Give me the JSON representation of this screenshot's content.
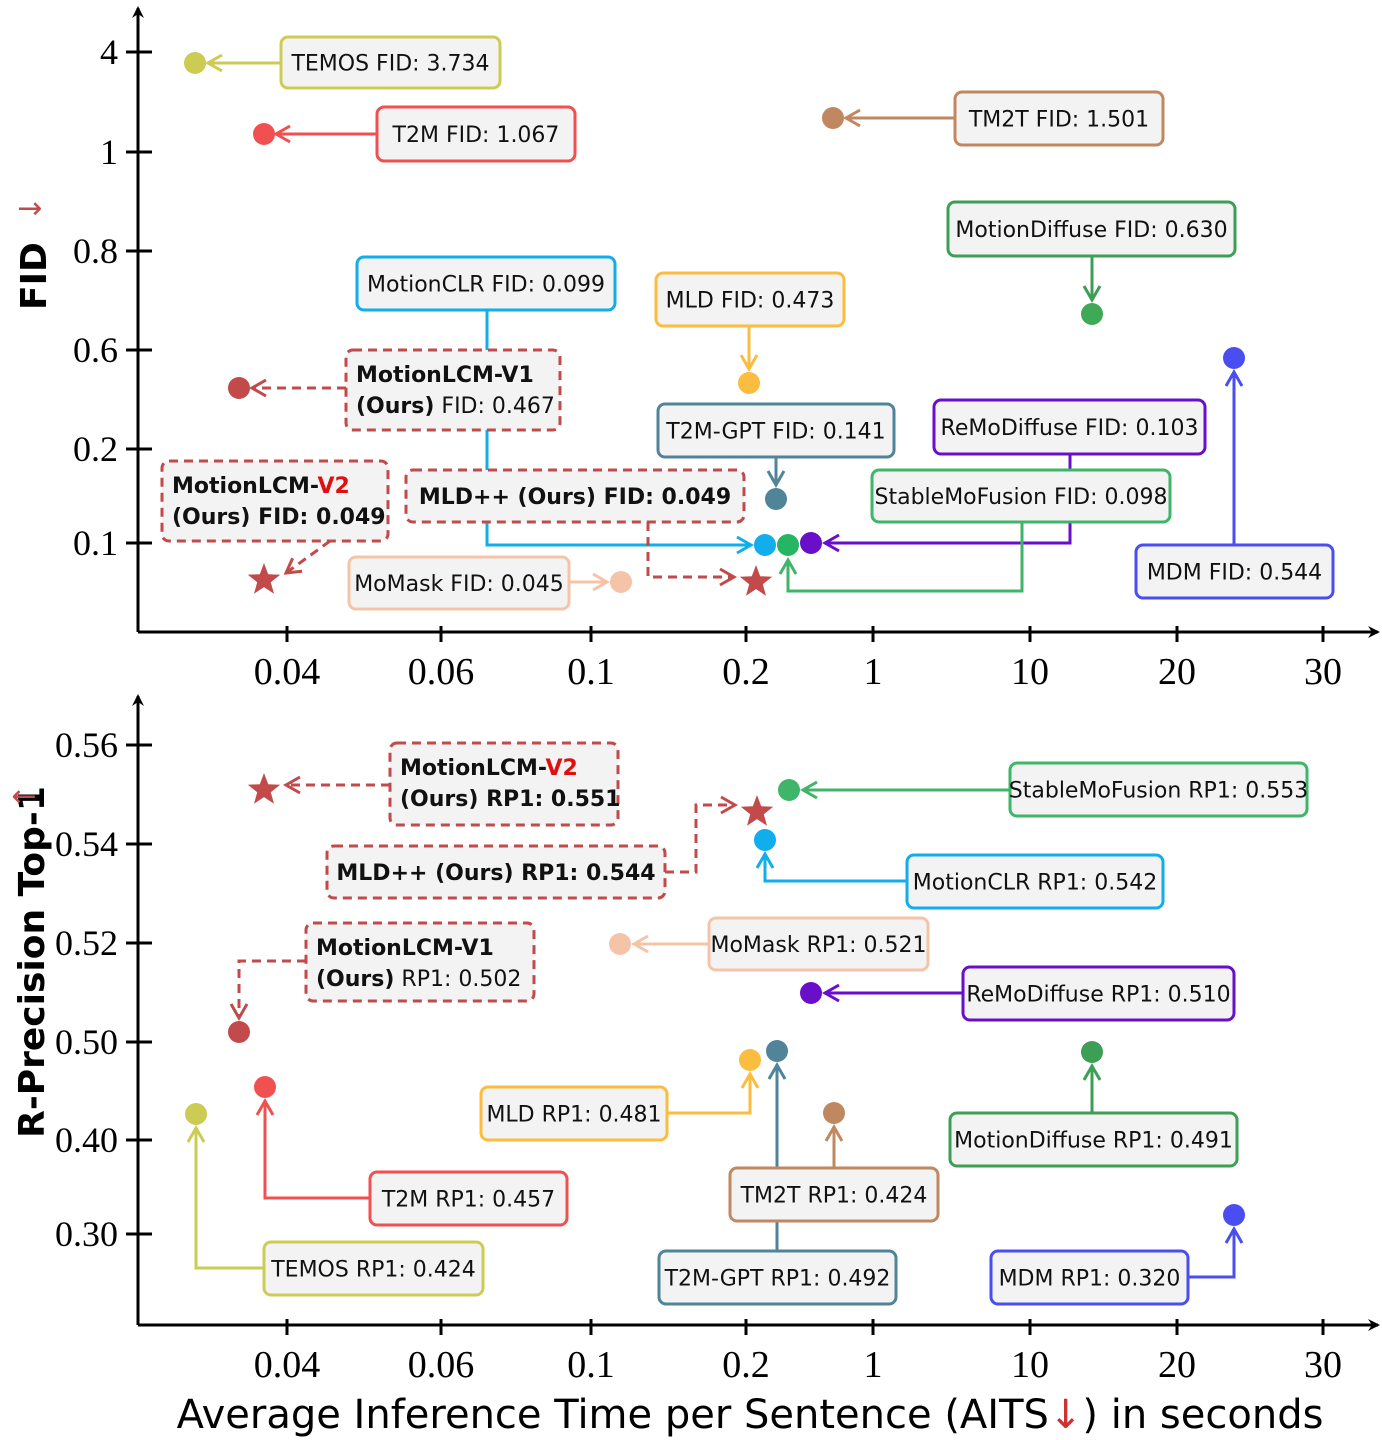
{
  "chart_data": [
    {
      "type": "scatter",
      "ylabel": "FID",
      "ylabel_arrow": "→",
      "x_ticks": [
        "0.04",
        "0.06",
        "0.1",
        "0.2",
        "1",
        "10",
        "20",
        "30"
      ],
      "y_ticks": [
        "4",
        "1",
        "0.8",
        "0.6",
        "0.2",
        "0.1"
      ],
      "points": [
        {
          "method": "TEMOS",
          "label": "TEMOS FID: 3.734",
          "marker": "circle",
          "color": "#cccc55",
          "x_tick": 0.6,
          "y_tick": 0.1,
          "box_color": "#cccc55"
        },
        {
          "method": "T2M",
          "label": "T2M FID: 1.067",
          "marker": "circle",
          "color": "#f05050",
          "x_tick": 0.82,
          "y_tick": 0.82,
          "box_color": "#f05050"
        },
        {
          "method": "TM2T",
          "label": "TM2T FID: 1.501",
          "marker": "circle",
          "color": "#c08860",
          "x_tick": 4.75,
          "y_tick": 0.68,
          "box_color": "#c08860"
        },
        {
          "method": "MotionDiffuse",
          "label": "MotionDiffuse FID: 0.630",
          "marker": "circle",
          "color": "#3faa55",
          "x_tick": 5.4,
          "y_tick": 2.64,
          "box_color": "#3d9f55"
        },
        {
          "method": "MotionCLR",
          "label": "MotionCLR FID: 0.099",
          "marker": "circle",
          "color": "#10aeec",
          "x_tick": 4.13,
          "y_tick": 5.0,
          "box_color": "#10aeec"
        },
        {
          "method": "MLD",
          "label": "MLD FID: 0.473",
          "marker": "circle",
          "color": "#fbbd3f",
          "x_tick": 4.02,
          "y_tick": 3.33,
          "box_color": "#fbbd3f"
        },
        {
          "method": "MotionLCM-V1",
          "title_bold": "MotionLCM-V1",
          "sub_bold": "(Ours)",
          "sub_rest": " FID: 0.467",
          "marker": "circle",
          "color": "#c24a4a",
          "x_tick": 0.5,
          "y_tick": 3.05,
          "box_color": "#c24a4a"
        },
        {
          "method": "T2M-GPT",
          "label": "T2M-GPT FID: 0.141",
          "marker": "circle",
          "color": "#4f8499",
          "x_tick": 4.1,
          "y_tick": 4.4,
          "box_color": "#4f8499"
        },
        {
          "method": "ReMoDiffuse",
          "label": "ReMoDiffuse FID: 0.103",
          "marker": "circle",
          "color": "#6a0fc9",
          "x_tick": 4.35,
          "y_tick": 5.0,
          "box_color": "#6a0fc9"
        },
        {
          "method": "StableMoFusion",
          "label": "StableMoFusion FID: 0.098",
          "marker": "circle",
          "color": "#26b563",
          "x_tick": 4.22,
          "y_tick": 5.0,
          "box_color": "#3fb56a"
        },
        {
          "method": "MotionLCM-V2",
          "title_bold": "MotionLCM-",
          "title_red": "V2",
          "sub_bold": "(Ours) FID: 0.049",
          "marker": "star",
          "color": "#c24a4a",
          "x_tick": 0.85,
          "y_tick": 5.38,
          "box_color": "#c24a4a"
        },
        {
          "method": "MLD++",
          "label": "MLD++ (Ours) FID: 0.049",
          "marker": "star",
          "color": "#c24a4a",
          "x_tick": 4.05,
          "y_tick": 5.41,
          "box_color": "#c24a4a"
        },
        {
          "method": "MoMask",
          "label": "MoMask FID: 0.045",
          "marker": "circle",
          "color": "#f5c4a8",
          "x_tick": 3.2,
          "y_tick": 5.41,
          "box_color": "#f5c4a8"
        },
        {
          "method": "MDM",
          "label": "MDM FID: 0.544",
          "marker": "circle",
          "color": "#4a4ef0",
          "x_tick": 7.45,
          "y_tick": 3.1,
          "box_color": "#4a4ef0"
        }
      ]
    },
    {
      "type": "scatter",
      "ylabel": "R-Precision Top-1",
      "ylabel_arrow": "←",
      "xlabel_pre": "Average Inference Time per Sentence (AITS",
      "xlabel_arrow": "↓",
      "xlabel_post": ") in seconds",
      "x_ticks": [
        "0.04",
        "0.06",
        "0.1",
        "0.2",
        "1",
        "10",
        "20",
        "30"
      ],
      "y_ticks": [
        "0.56",
        "0.54",
        "0.52",
        "0.50",
        "0.40",
        "0.30"
      ],
      "points": [
        {
          "method": "MotionLCM-V2",
          "title_bold": "MotionLCM-",
          "title_red": "V2",
          "sub_bold": "(Ours) RP1: 0.551",
          "marker": "star",
          "color": "#c24a4a",
          "x_tick": 0.85,
          "y_tick": 0.45,
          "box_color": "#c24a4a"
        },
        {
          "method": "MLD++",
          "label": "MLD++ (Ours) RP1: 0.544",
          "marker": "star",
          "color": "#c24a4a",
          "x_tick": 4.08,
          "y_tick": 0.7,
          "box_color": "#c24a4a"
        },
        {
          "method": "StableMoFusion",
          "label": "StableMoFusion RP1: 0.553",
          "marker": "circle",
          "color": "#3fb56a",
          "x_tick": 4.27,
          "y_tick": 0.45,
          "box_color": "#3fb56a"
        },
        {
          "method": "MotionCLR",
          "label": "MotionCLR RP1: 0.542",
          "marker": "circle",
          "color": "#10aeec",
          "x_tick": 4.13,
          "y_tick": 0.97,
          "box_color": "#10aeec"
        },
        {
          "method": "MoMask",
          "label": "MoMask RP1: 0.521",
          "marker": "circle",
          "color": "#f5c4a8",
          "x_tick": 3.2,
          "y_tick": 2.0,
          "box_color": "#f5c4a8"
        },
        {
          "method": "MotionLCM-V1",
          "title_bold": "MotionLCM-V1",
          "sub_bold": "(Ours)",
          "sub_rest": " RP1: 0.502",
          "marker": "circle",
          "color": "#c24a4a",
          "x_tick": 0.5,
          "y_tick": 2.9,
          "box_color": "#c24a4a"
        },
        {
          "method": "ReMoDiffuse",
          "label": "ReMoDiffuse RP1: 0.510",
          "marker": "circle",
          "color": "#6a0fc9",
          "x_tick": 4.35,
          "y_tick": 2.5,
          "box_color": "#6a0fc9"
        },
        {
          "method": "T2M-GPT",
          "label": "T2M-GPT RP1: 0.492",
          "marker": "circle",
          "color": "#4f8499",
          "x_tick": 4.2,
          "y_tick": 3.1,
          "box_color": "#4f8499"
        },
        {
          "method": "MLD",
          "label": "MLD RP1: 0.481",
          "marker": "circle",
          "color": "#fbbd3f",
          "x_tick": 4.02,
          "y_tick": 3.18,
          "box_color": "#fbbd3f"
        },
        {
          "method": "MotionDiffuse",
          "label": "MotionDiffuse RP1: 0.491",
          "marker": "circle",
          "color": "#3d9f55",
          "x_tick": 5.4,
          "y_tick": 3.1,
          "box_color": "#3d9f55"
        },
        {
          "method": "T2M",
          "label": "T2M RP1: 0.457",
          "marker": "circle",
          "color": "#f05050",
          "x_tick": 0.82,
          "y_tick": 3.47,
          "box_color": "#f05050"
        },
        {
          "method": "TEMOS",
          "label": "TEMOS RP1: 0.424",
          "marker": "circle",
          "color": "#cccc55",
          "x_tick": 0.6,
          "y_tick": 3.74,
          "box_color": "#cccc55"
        },
        {
          "method": "TM2T",
          "label": "TM2T RP1: 0.424",
          "marker": "circle",
          "color": "#c08860",
          "x_tick": 4.77,
          "y_tick": 3.74,
          "box_color": "#c08860"
        },
        {
          "method": "MDM",
          "label": "MDM RP1: 0.320",
          "marker": "circle",
          "color": "#4a4ef0",
          "x_tick": 7.45,
          "y_tick": 5.17,
          "box_color": "#4a4ef0"
        }
      ]
    }
  ]
}
